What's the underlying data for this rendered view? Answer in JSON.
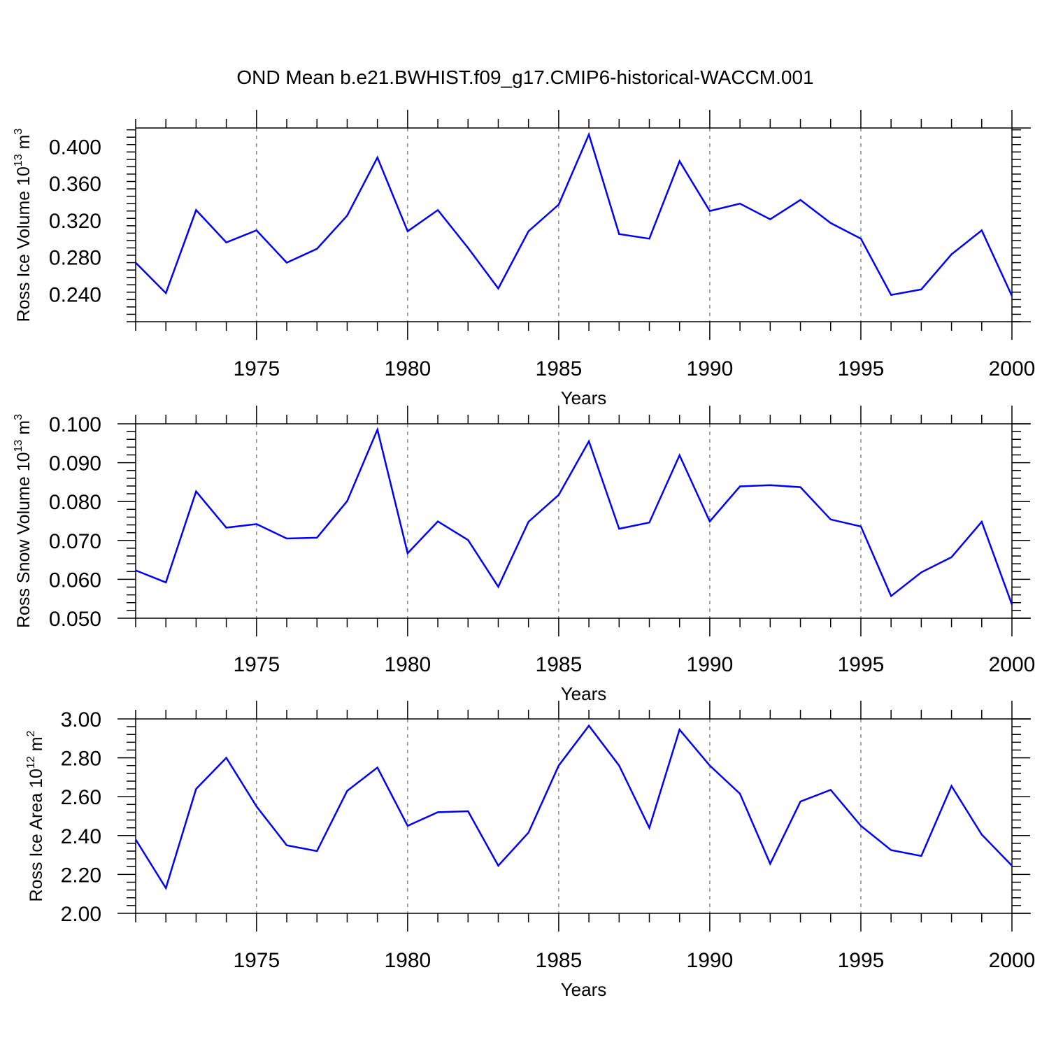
{
  "title": "OND Mean b.e21.BWHIST.f09_g17.CMIP6-historical-WACCM.001",
  "line_color": "#0000ff",
  "chart_data": [
    {
      "type": "line",
      "title": "",
      "xlabel": "Years",
      "ylabel": "Ross Ice Volume",
      "yunit": {
        "base": "10",
        "exp": "13",
        "unit": "m",
        "unit_exp": "3"
      },
      "xlim": [
        1971,
        2000
      ],
      "ylim": [
        0.21,
        0.42
      ],
      "yticks": [
        0.24,
        0.28,
        0.32,
        0.36,
        0.4
      ],
      "ytick_labels": [
        "0.240",
        "0.280",
        "0.320",
        "0.360",
        "0.400"
      ],
      "xticks": [
        1975,
        1980,
        1985,
        1990,
        1995,
        2000
      ],
      "xtick_labels": [
        "1975",
        "1980",
        "1985",
        "1990",
        "1995",
        "2000"
      ],
      "grid": "x-dashed",
      "x": [
        1971,
        1972,
        1973,
        1974,
        1975,
        1976,
        1977,
        1978,
        1979,
        1980,
        1981,
        1982,
        1983,
        1984,
        1985,
        1986,
        1987,
        1988,
        1989,
        1990,
        1991,
        1992,
        1993,
        1994,
        1995,
        1996,
        1997,
        1998,
        1999,
        2000
      ],
      "values": [
        0.274,
        0.241,
        0.331,
        0.296,
        0.309,
        0.274,
        0.289,
        0.325,
        0.388,
        0.308,
        0.331,
        0.29,
        0.246,
        0.308,
        0.337,
        0.413,
        0.305,
        0.3,
        0.384,
        0.33,
        0.338,
        0.321,
        0.342,
        0.317,
        0.3,
        0.239,
        0.245,
        0.283,
        0.309,
        0.238
      ]
    },
    {
      "type": "line",
      "title": "",
      "xlabel": "Years",
      "ylabel": "Ross Snow Volume",
      "yunit": {
        "base": "10",
        "exp": "13",
        "unit": "m",
        "unit_exp": "3"
      },
      "xlim": [
        1971,
        2000
      ],
      "ylim": [
        0.05,
        0.1
      ],
      "yticks": [
        0.05,
        0.06,
        0.07,
        0.08,
        0.09,
        0.1
      ],
      "ytick_labels": [
        "0.050",
        "0.060",
        "0.070",
        "0.080",
        "0.090",
        "0.100"
      ],
      "xticks": [
        1975,
        1980,
        1985,
        1990,
        1995,
        2000
      ],
      "xtick_labels": [
        "1975",
        "1980",
        "1985",
        "1990",
        "1995",
        "2000"
      ],
      "grid": "x-dashed",
      "x": [
        1971,
        1972,
        1973,
        1974,
        1975,
        1976,
        1977,
        1978,
        1979,
        1980,
        1981,
        1982,
        1983,
        1984,
        1985,
        1986,
        1987,
        1988,
        1989,
        1990,
        1991,
        1992,
        1993,
        1994,
        1995,
        1996,
        1997,
        1998,
        1999,
        2000
      ],
      "values": [
        0.0623,
        0.0592,
        0.0826,
        0.0733,
        0.0742,
        0.0705,
        0.0707,
        0.0801,
        0.0985,
        0.0667,
        0.0749,
        0.0701,
        0.0581,
        0.0748,
        0.0817,
        0.0955,
        0.073,
        0.0746,
        0.0919,
        0.0749,
        0.0839,
        0.0842,
        0.0837,
        0.0754,
        0.0736,
        0.0557,
        0.0618,
        0.0657,
        0.0748,
        0.0535
      ]
    },
    {
      "type": "line",
      "title": "",
      "xlabel": "Years",
      "ylabel": "Ross Ice Area",
      "yunit": {
        "base": "10",
        "exp": "12",
        "unit": "m",
        "unit_exp": "2"
      },
      "xlim": [
        1971,
        2000
      ],
      "ylim": [
        2.0,
        3.0
      ],
      "yticks": [
        2.0,
        2.2,
        2.4,
        2.6,
        2.8,
        3.0
      ],
      "ytick_labels": [
        "2.00",
        "2.20",
        "2.40",
        "2.60",
        "2.80",
        "3.00"
      ],
      "xticks": [
        1975,
        1980,
        1985,
        1990,
        1995,
        2000
      ],
      "xtick_labels": [
        "1975",
        "1980",
        "1985",
        "1990",
        "1995",
        "2000"
      ],
      "grid": "x-dashed",
      "x": [
        1971,
        1972,
        1973,
        1974,
        1975,
        1976,
        1977,
        1978,
        1979,
        1980,
        1981,
        1982,
        1983,
        1984,
        1985,
        1986,
        1987,
        1988,
        1989,
        1990,
        1991,
        1992,
        1993,
        1994,
        1995,
        1996,
        1997,
        1998,
        1999,
        2000
      ],
      "values": [
        2.38,
        2.13,
        2.64,
        2.8,
        2.55,
        2.35,
        2.32,
        2.63,
        2.75,
        2.45,
        2.52,
        2.525,
        2.245,
        2.415,
        2.76,
        2.965,
        2.76,
        2.44,
        2.945,
        2.76,
        2.615,
        2.255,
        2.575,
        2.635,
        2.45,
        2.325,
        2.295,
        2.655,
        2.405,
        2.245
      ]
    }
  ]
}
